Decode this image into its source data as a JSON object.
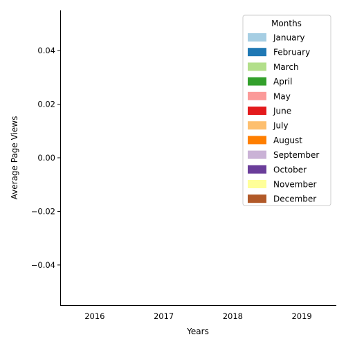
{
  "chart_data": {
    "type": "bar",
    "xlabel": "Years",
    "ylabel": "Average Page Views",
    "categories": [
      "2016",
      "2017",
      "2018",
      "2019"
    ],
    "ylim": [
      -0.055,
      0.055
    ],
    "yticks": [
      -0.04,
      -0.02,
      0.0,
      0.02,
      0.04
    ],
    "ytick_labels": [
      "−0.04",
      "−0.02",
      "0.00",
      "0.02",
      "0.04"
    ],
    "grid": false,
    "legend": {
      "title": "Months",
      "placement": "top-right",
      "entries": [
        {
          "name": "January",
          "color": "#a6cee3"
        },
        {
          "name": "February",
          "color": "#1f78b4"
        },
        {
          "name": "March",
          "color": "#b2df8a"
        },
        {
          "name": "April",
          "color": "#33a02c"
        },
        {
          "name": "May",
          "color": "#fb9a99"
        },
        {
          "name": "June",
          "color": "#e31a1c"
        },
        {
          "name": "July",
          "color": "#fdbf6f"
        },
        {
          "name": "August",
          "color": "#ff7f00"
        },
        {
          "name": "September",
          "color": "#cab2d6"
        },
        {
          "name": "October",
          "color": "#6a3d9a"
        },
        {
          "name": "November",
          "color": "#ffff99"
        },
        {
          "name": "December",
          "color": "#b15928"
        }
      ]
    },
    "series": []
  }
}
